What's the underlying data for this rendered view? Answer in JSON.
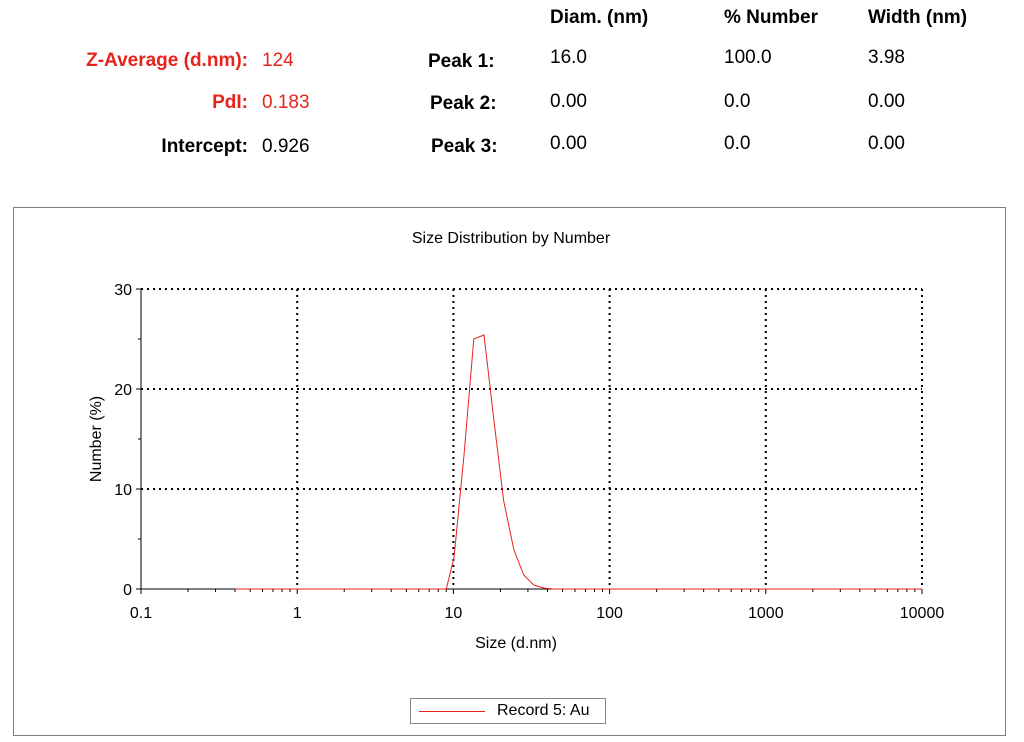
{
  "summary": {
    "z_average_label": "Z-Average (d.nm):",
    "z_average_value": "124",
    "pdi_label": "PdI:",
    "pdi_value": "0.183",
    "intercept_label": "Intercept:",
    "intercept_value": "0.926",
    "accent_color": "#e8231b"
  },
  "peaks": {
    "headers": [
      "Diam. (nm)",
      "% Number",
      "Width (nm)"
    ],
    "rows": [
      {
        "label": "Peak 1:",
        "diam": "16.0",
        "number": "100.0",
        "width": "3.98"
      },
      {
        "label": "Peak 2:",
        "diam": "0.00",
        "number": "0.0",
        "width": "0.00"
      },
      {
        "label": "Peak 3:",
        "diam": "0.00",
        "number": "0.0",
        "width": "0.00"
      }
    ]
  },
  "chart_data": {
    "type": "line",
    "title": "Size Distribution by Number",
    "xlabel": "Size (d.nm)",
    "ylabel": "Number (%)",
    "x_scale": "log",
    "xlim": [
      0.1,
      10000
    ],
    "ylim": [
      0,
      30
    ],
    "x_ticks": [
      "0.1",
      "1",
      "10",
      "100",
      "1000",
      "10000"
    ],
    "y_ticks": [
      "0",
      "10",
      "20",
      "30"
    ],
    "grid": true,
    "legend_position": "bottom-center",
    "series": [
      {
        "name": "Record 5: Au",
        "color": "#e8231b",
        "x": [
          0.4,
          0.46,
          0.53,
          0.62,
          0.71,
          0.83,
          0.96,
          1.1,
          1.3,
          1.5,
          1.7,
          2.0,
          2.3,
          2.7,
          3.1,
          3.6,
          4.2,
          4.8,
          5.6,
          6.5,
          7.5,
          8.7,
          9.0,
          10.1,
          11.7,
          13.5,
          15.7,
          18.2,
          21.0,
          24.4,
          28.2,
          32.7,
          37.8,
          43.8,
          50.7,
          58.8,
          68.1,
          78.8,
          91.3,
          105.7,
          122.4,
          141.8,
          164.2,
          190.1,
          220.2,
          255.0,
          295.3,
          342.0,
          396.1,
          458.7,
          531.2,
          615.1,
          712.4,
          825.0,
          955.4,
          1106,
          1281,
          1484,
          1718,
          1990,
          2305,
          2669,
          3091,
          3580,
          4145,
          4801,
          5560,
          6439,
          7456,
          8635,
          10000
        ],
        "y": [
          0,
          0,
          0,
          0,
          0,
          0,
          0,
          0,
          0,
          0,
          0,
          0,
          0,
          0,
          0,
          0,
          0,
          0,
          0,
          0,
          0,
          0,
          0,
          3.2,
          13.5,
          25.0,
          25.4,
          16.8,
          8.8,
          3.9,
          1.4,
          0.4,
          0.1,
          0,
          0,
          0,
          0,
          0,
          0,
          0,
          0,
          0,
          0,
          0,
          0,
          0,
          0,
          0,
          0,
          0,
          0,
          0,
          0,
          0,
          0,
          0,
          0,
          0,
          0,
          0,
          0,
          0,
          0,
          0,
          0,
          0,
          0,
          0,
          0,
          0,
          0
        ]
      }
    ]
  }
}
